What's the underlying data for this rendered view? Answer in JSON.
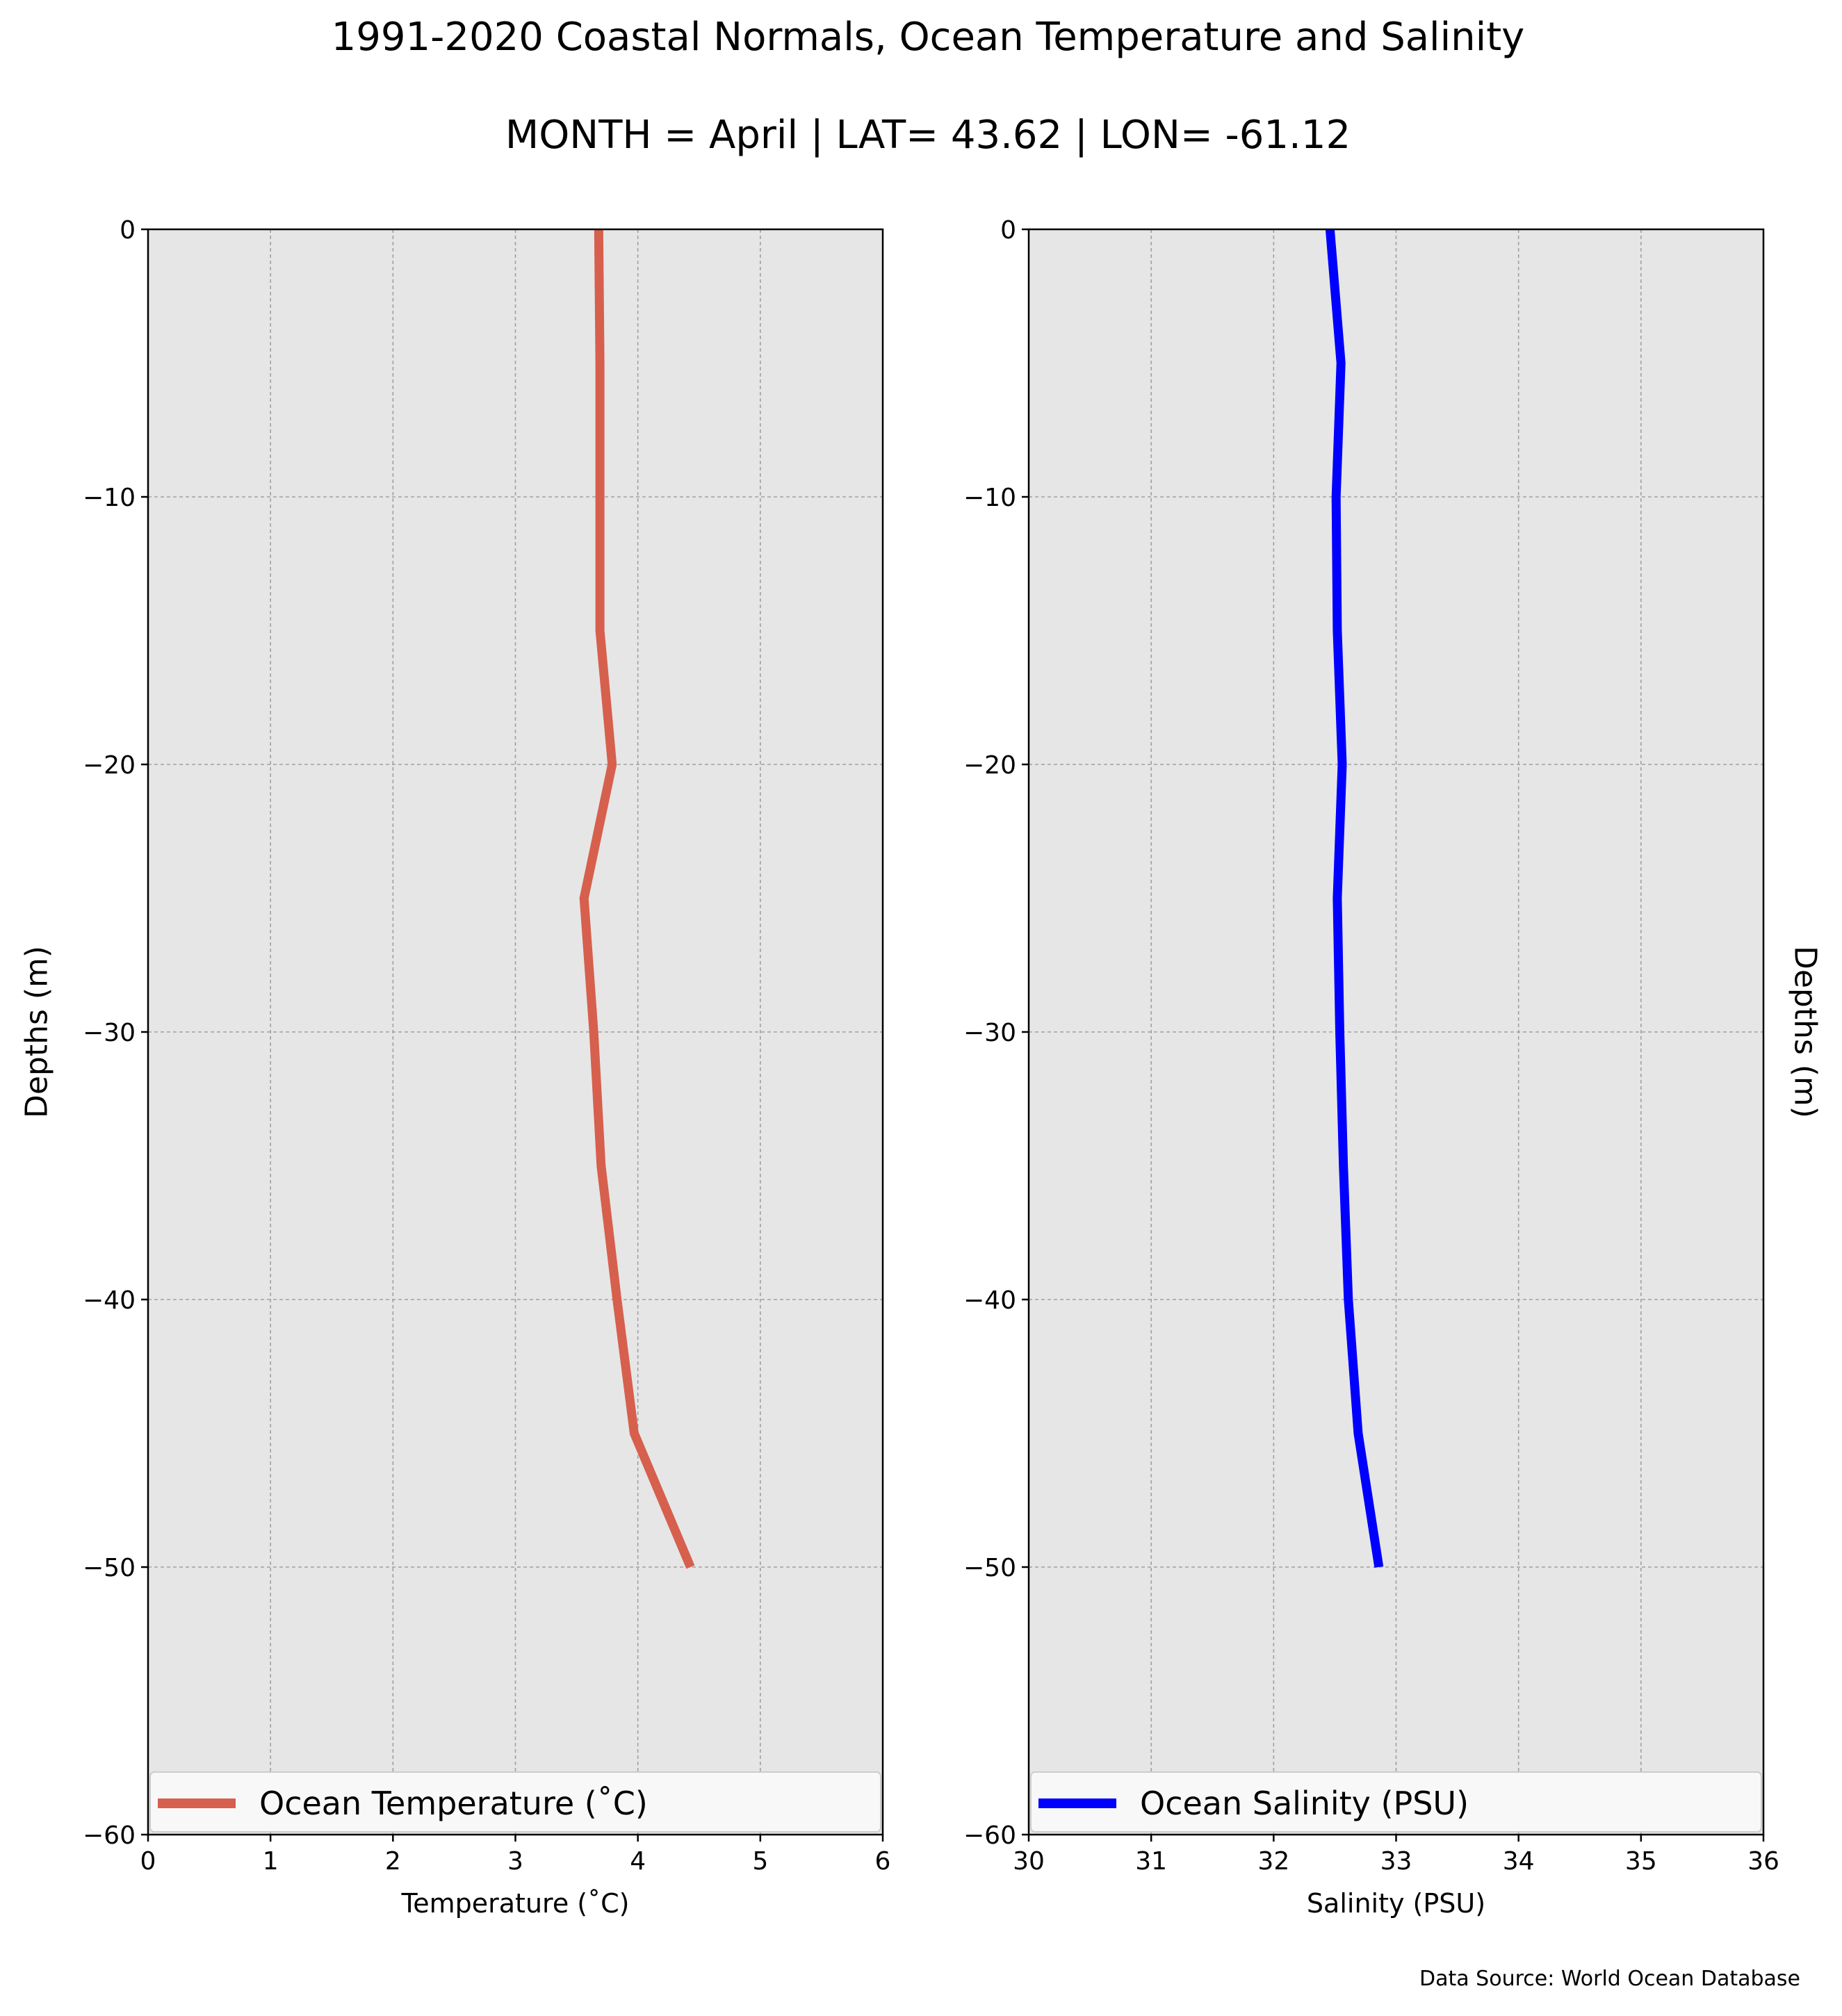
{
  "title": "1991-2020 Coastal Normals, Ocean Temperature and Salinity",
  "subtitle": "MONTH = April | LAT= 43.62 | LON= -61.12",
  "source": "Data Source: World Ocean Database",
  "colors": {
    "panel_bg": "#e6e6e6",
    "grid": "#a0a0a0",
    "temperature": "#d6604d",
    "salinity": "#0000ff"
  },
  "chart_data": [
    {
      "type": "line",
      "xlabel": "Temperature ($^\\circ$C)",
      "xlabel_display": "Temperature (˚C)",
      "ylabel": "Depths (m)",
      "xlim": [
        0,
        6
      ],
      "ylim": [
        -60,
        0
      ],
      "xticks": [
        "0",
        "1",
        "2",
        "3",
        "4",
        "5",
        "6"
      ],
      "yticks": [
        "0",
        "−10",
        "−20",
        "−30",
        "−40",
        "−50",
        "−60"
      ],
      "grid": true,
      "legend_position": "bottom",
      "series": [
        {
          "name": "Ocean Temperature (˚C)",
          "color": "#d6604d",
          "x": [
            3.68,
            3.69,
            3.69,
            3.69,
            3.79,
            3.56,
            3.64,
            3.7,
            3.83,
            3.97,
            4.43
          ],
          "y": [
            0,
            -5,
            -10,
            -15,
            -20,
            -25,
            -30,
            -35,
            -40,
            -45,
            -50
          ]
        }
      ]
    },
    {
      "type": "line",
      "xlabel": "Salinity (PSU)",
      "ylabel": "Depths (m)",
      "xlim": [
        30,
        36
      ],
      "ylim": [
        -60,
        0
      ],
      "xticks": [
        "30",
        "31",
        "32",
        "33",
        "34",
        "35",
        "36"
      ],
      "yticks": [
        "0",
        "−10",
        "−20",
        "−30",
        "−40",
        "−50",
        "−60"
      ],
      "grid": true,
      "legend_position": "bottom",
      "series": [
        {
          "name": "Ocean Salinity (PSU)",
          "color": "#0000ff",
          "x": [
            32.46,
            32.55,
            32.51,
            32.52,
            32.56,
            32.52,
            32.54,
            32.57,
            32.61,
            32.69,
            32.86
          ],
          "y": [
            0,
            -5,
            -10,
            -15,
            -20,
            -25,
            -30,
            -35,
            -40,
            -45,
            -50
          ]
        }
      ]
    }
  ]
}
